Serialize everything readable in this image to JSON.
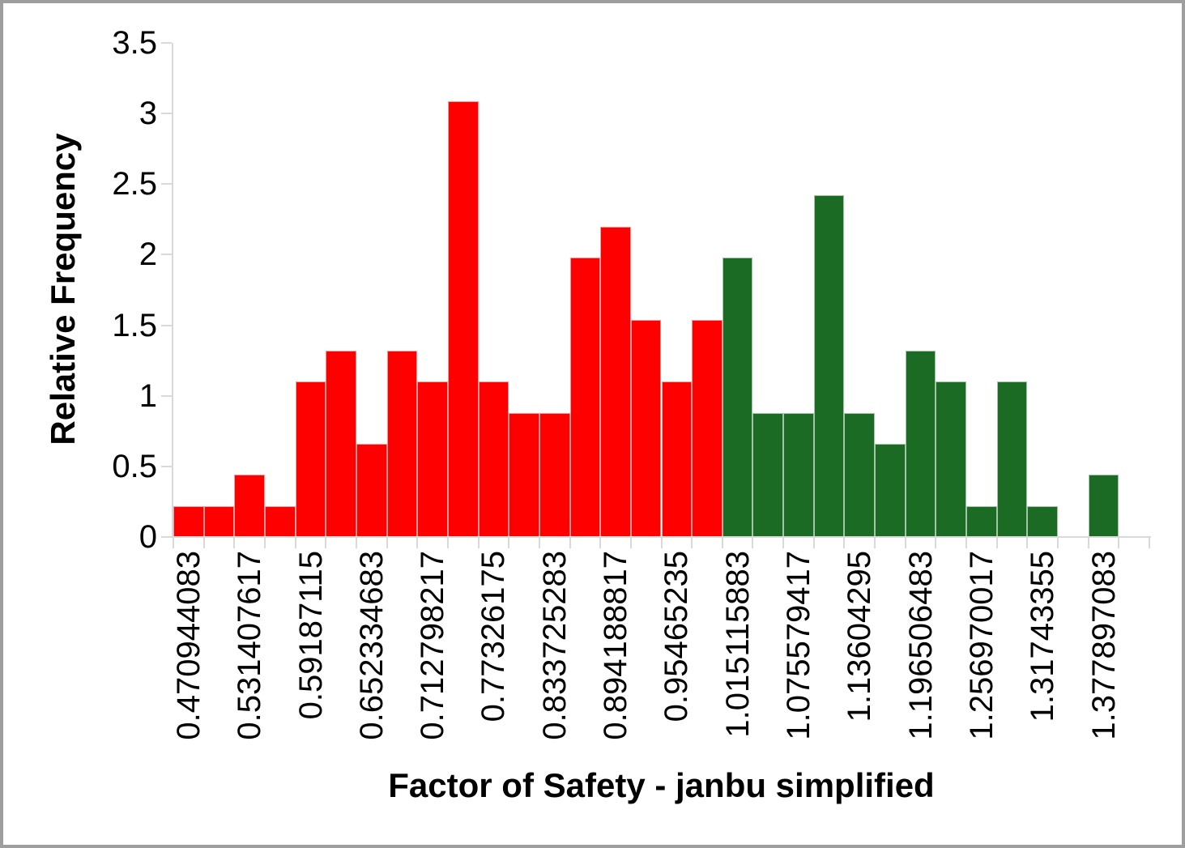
{
  "frame": {
    "border_color": "#9e9e9e",
    "background": "#ffffff"
  },
  "axes": {
    "line_color": "#d9d9d9",
    "text_color": "#000000"
  },
  "chart_data": {
    "type": "bar",
    "title": "",
    "xlabel": "Factor of Safety - janbu simplified",
    "ylabel": "Relative Frequency",
    "ylim": [
      0,
      3.5
    ],
    "grid": "off",
    "legend": "none",
    "y_tick_labels": [
      "0",
      "0.5",
      "1",
      "1.5",
      "2",
      "2.5",
      "3",
      "3.5"
    ],
    "y_tick_values": [
      0,
      0.5,
      1,
      1.5,
      2,
      2.5,
      3,
      3.5
    ],
    "x_tick_labels": [
      "0.470944083",
      "0.531407617",
      "0.59187115",
      "0.652334683",
      "0.712798217",
      "0.77326175",
      "0.833725283",
      "0.894188817",
      "0.95465235",
      "1.015115883",
      "1.075579417",
      "1.13604295",
      "1.196506483",
      "1.256970017",
      "1.31743355",
      "1.377897083"
    ],
    "x_tick_label_bin_indices": [
      0,
      2,
      4,
      6,
      8,
      10,
      12,
      14,
      16,
      18,
      20,
      22,
      24,
      26,
      28,
      30
    ],
    "bin_count": 32,
    "values": [
      0.22,
      0.22,
      0.44,
      0.22,
      1.1,
      1.32,
      0.66,
      1.32,
      1.1,
      3.09,
      1.1,
      0.88,
      0.88,
      1.98,
      2.2,
      1.54,
      1.1,
      1.54,
      1.98,
      0.88,
      0.88,
      2.42,
      0.88,
      0.66,
      1.32,
      1.1,
      0.22,
      1.1,
      0.22,
      0.0,
      0.44,
      0.0
    ],
    "first_green_bin_index": 18,
    "bar_color_below_1": "#fe0000",
    "bar_color_above_1": "#1b6b25"
  }
}
